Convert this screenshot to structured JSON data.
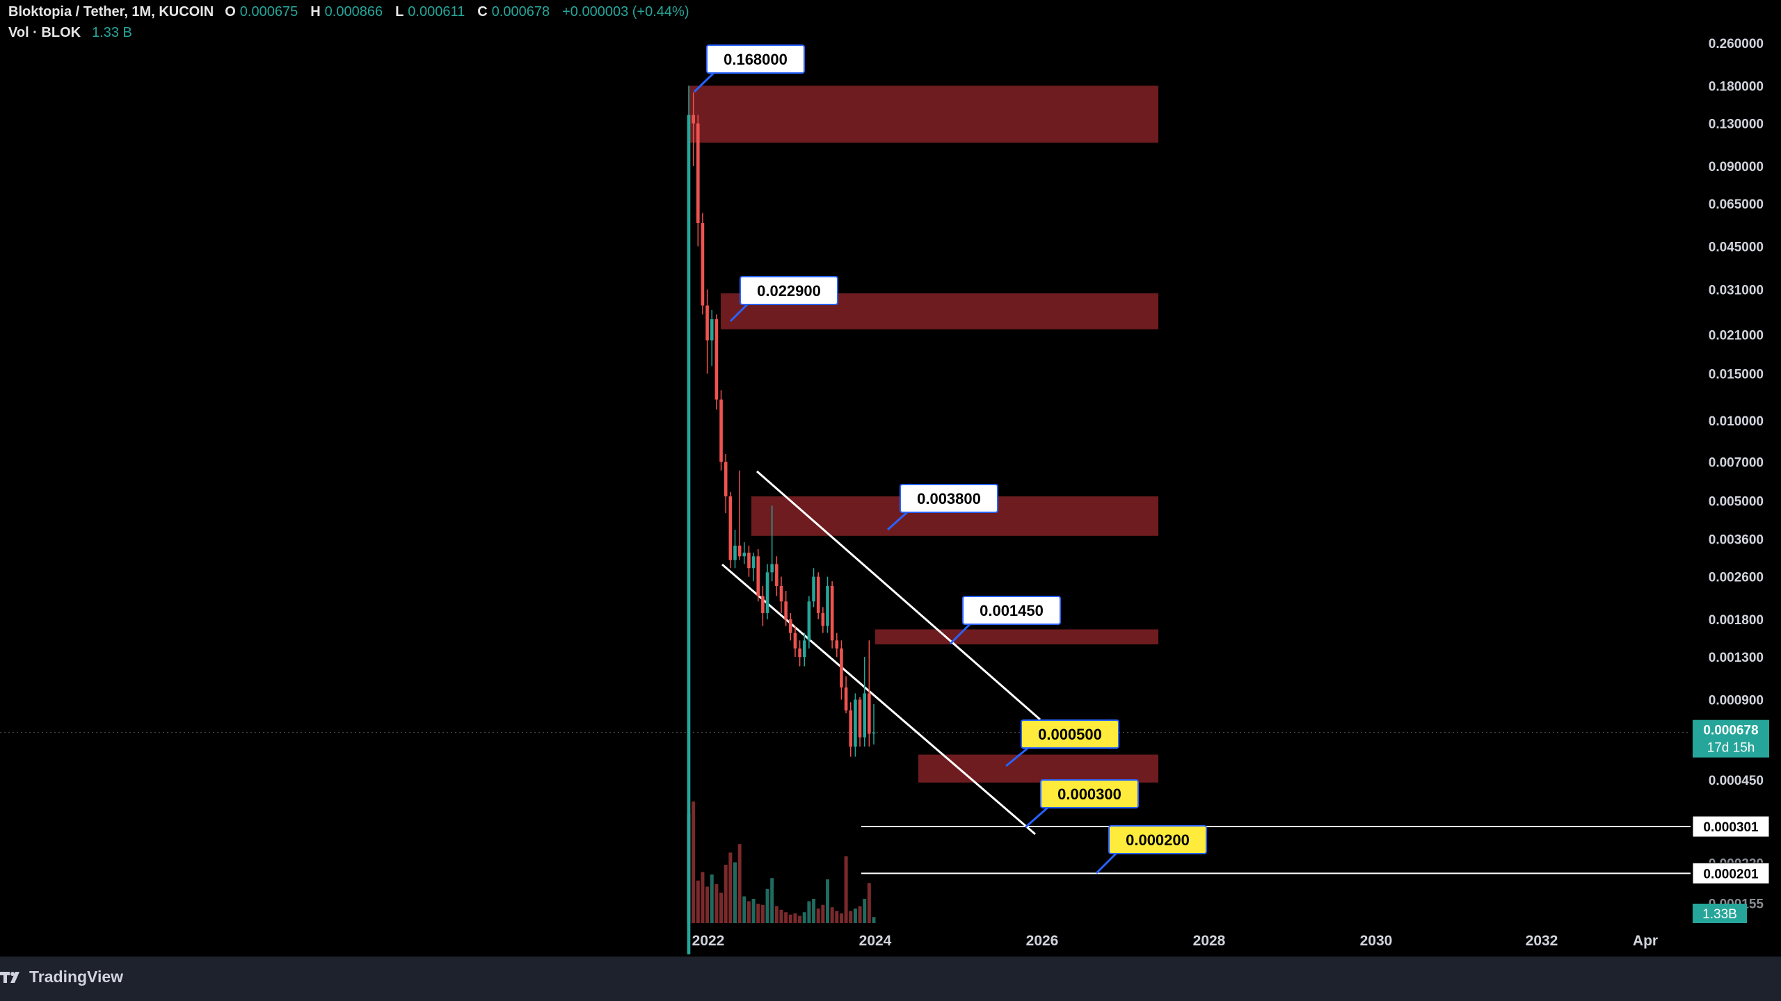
{
  "header": {
    "symbol": "Bloktopia / Tether, 1M, KUCOIN",
    "o_key": "O",
    "o_val": "0.000675",
    "h_key": "H",
    "h_val": "0.000866",
    "l_key": "L",
    "l_val": "0.000611",
    "c_key": "C",
    "c_val": "0.000678",
    "change": "+0.000003 (+0.44%)",
    "vol_label": "Vol · BLOK",
    "vol_val": "1.33 B"
  },
  "footer": {
    "brand": "TradingView"
  },
  "colors": {
    "background": "#000000",
    "up": "#26a69a",
    "down": "#ef5350",
    "zone": "#6e1c1f",
    "callout_white": "#ffffff",
    "callout_yellow": "#ffeb3b",
    "callout_border": "#2962ff",
    "price_tag": "#26a69a"
  },
  "chart_data": {
    "type": "candlestick",
    "scale": "log",
    "ylim": [
      0.00015,
      0.38
    ],
    "y_ticks": [
      "0.260000",
      "0.180000",
      "0.130000",
      "0.090000",
      "0.065000",
      "0.045000",
      "0.031000",
      "0.021000",
      "0.015000",
      "0.010000",
      "0.007000",
      "0.005000",
      "0.003600",
      "0.002600",
      "0.001800",
      "0.001300",
      "0.000900",
      "0.000450"
    ],
    "x_ticks": [
      "2022",
      "2024",
      "2026",
      "2028",
      "2030",
      "2032",
      "Apr"
    ],
    "last_price": {
      "label": "0.000678",
      "countdown": "17d 15h"
    },
    "vol_tag": "1.33B",
    "horizontal_lines": [
      {
        "value": 0.000301,
        "label": "0.000301"
      },
      {
        "value": 0.000201,
        "label": "0.000201"
      }
    ],
    "faded_ticks": [
      "0.000220",
      "0.000155"
    ],
    "zones": [
      {
        "top": 0.18,
        "bottom": 0.11
      },
      {
        "top": 0.03,
        "bottom": 0.022
      },
      {
        "top": 0.0052,
        "bottom": 0.0037
      },
      {
        "top": 0.00165,
        "bottom": 0.00145
      },
      {
        "top": 0.00056,
        "bottom": 0.00044
      }
    ],
    "callouts": [
      {
        "label": "0.168000",
        "value": 0.168,
        "style": "white"
      },
      {
        "label": "0.022900",
        "value": 0.0229,
        "style": "white"
      },
      {
        "label": "0.003800",
        "value": 0.0038,
        "style": "white"
      },
      {
        "label": "0.001450",
        "value": 0.00145,
        "style": "white"
      },
      {
        "label": "0.000500",
        "value": 0.0005,
        "style": "yellow"
      },
      {
        "label": "0.000300",
        "value": 0.0003,
        "style": "yellow"
      },
      {
        "label": "0.000200",
        "value": 0.0002,
        "style": "yellow"
      }
    ],
    "candles": [
      {
        "o": 0.0001,
        "h": 0.18,
        "l": 0.0001,
        "c": 0.14,
        "v": 0.9
      },
      {
        "o": 0.14,
        "h": 0.17,
        "l": 0.09,
        "c": 0.13,
        "v": 1.0
      },
      {
        "o": 0.13,
        "h": 0.14,
        "l": 0.045,
        "c": 0.055,
        "v": 0.35
      },
      {
        "o": 0.055,
        "h": 0.06,
        "l": 0.025,
        "c": 0.027,
        "v": 0.42
      },
      {
        "o": 0.027,
        "h": 0.031,
        "l": 0.015,
        "c": 0.02,
        "v": 0.3
      },
      {
        "o": 0.02,
        "h": 0.026,
        "l": 0.016,
        "c": 0.024,
        "v": 0.4
      },
      {
        "o": 0.024,
        "h": 0.025,
        "l": 0.011,
        "c": 0.012,
        "v": 0.32
      },
      {
        "o": 0.012,
        "h": 0.013,
        "l": 0.0065,
        "c": 0.007,
        "v": 0.25
      },
      {
        "o": 0.007,
        "h": 0.0075,
        "l": 0.0045,
        "c": 0.0052,
        "v": 0.48
      },
      {
        "o": 0.0052,
        "h": 0.0054,
        "l": 0.0028,
        "c": 0.003,
        "v": 0.58
      },
      {
        "o": 0.003,
        "h": 0.0039,
        "l": 0.0028,
        "c": 0.0034,
        "v": 0.5
      },
      {
        "o": 0.0034,
        "h": 0.0065,
        "l": 0.003,
        "c": 0.0031,
        "v": 0.65
      },
      {
        "o": 0.0031,
        "h": 0.0035,
        "l": 0.0029,
        "c": 0.0032,
        "v": 0.22
      },
      {
        "o": 0.0032,
        "h": 0.0034,
        "l": 0.0026,
        "c": 0.0028,
        "v": 0.18
      },
      {
        "o": 0.0028,
        "h": 0.0032,
        "l": 0.0025,
        "c": 0.0031,
        "v": 0.2
      },
      {
        "o": 0.0031,
        "h": 0.0033,
        "l": 0.0021,
        "c": 0.0022,
        "v": 0.16
      },
      {
        "o": 0.0022,
        "h": 0.0024,
        "l": 0.0017,
        "c": 0.0019,
        "v": 0.15
      },
      {
        "o": 0.0019,
        "h": 0.0029,
        "l": 0.0018,
        "c": 0.0027,
        "v": 0.28
      },
      {
        "o": 0.0027,
        "h": 0.0048,
        "l": 0.0025,
        "c": 0.0029,
        "v": 0.37
      },
      {
        "o": 0.0029,
        "h": 0.0031,
        "l": 0.0022,
        "c": 0.0024,
        "v": 0.14
      },
      {
        "o": 0.0024,
        "h": 0.0026,
        "l": 0.0019,
        "c": 0.0021,
        "v": 0.11
      },
      {
        "o": 0.0021,
        "h": 0.0023,
        "l": 0.0017,
        "c": 0.0018,
        "v": 0.09
      },
      {
        "o": 0.0018,
        "h": 0.0019,
        "l": 0.0015,
        "c": 0.0016,
        "v": 0.07
      },
      {
        "o": 0.0016,
        "h": 0.0017,
        "l": 0.0013,
        "c": 0.0014,
        "v": 0.08
      },
      {
        "o": 0.0014,
        "h": 0.0015,
        "l": 0.0012,
        "c": 0.0013,
        "v": 0.06
      },
      {
        "o": 0.0013,
        "h": 0.0016,
        "l": 0.0012,
        "c": 0.0015,
        "v": 0.09
      },
      {
        "o": 0.0015,
        "h": 0.0022,
        "l": 0.0014,
        "c": 0.0021,
        "v": 0.18
      },
      {
        "o": 0.0021,
        "h": 0.0028,
        "l": 0.002,
        "c": 0.0026,
        "v": 0.2
      },
      {
        "o": 0.0026,
        "h": 0.0027,
        "l": 0.0018,
        "c": 0.0019,
        "v": 0.12
      },
      {
        "o": 0.0019,
        "h": 0.002,
        "l": 0.0016,
        "c": 0.0017,
        "v": 0.15
      },
      {
        "o": 0.0017,
        "h": 0.0026,
        "l": 0.0016,
        "c": 0.0024,
        "v": 0.36
      },
      {
        "o": 0.0024,
        "h": 0.0025,
        "l": 0.0014,
        "c": 0.0015,
        "v": 0.13
      },
      {
        "o": 0.0015,
        "h": 0.0016,
        "l": 0.0013,
        "c": 0.0014,
        "v": 0.1
      },
      {
        "o": 0.0014,
        "h": 0.0015,
        "l": 0.0009,
        "c": 0.001,
        "v": 0.08
      },
      {
        "o": 0.001,
        "h": 0.0011,
        "l": 0.0008,
        "c": 0.00082,
        "v": 0.55
      },
      {
        "o": 0.00082,
        "h": 0.00088,
        "l": 0.00055,
        "c": 0.0006,
        "v": 0.1
      },
      {
        "o": 0.0006,
        "h": 0.00095,
        "l": 0.00055,
        "c": 0.0009,
        "v": 0.12
      },
      {
        "o": 0.0009,
        "h": 0.00092,
        "l": 0.0006,
        "c": 0.00065,
        "v": 0.14
      },
      {
        "o": 0.00065,
        "h": 0.0013,
        "l": 0.0006,
        "c": 0.00095,
        "v": 0.2
      },
      {
        "o": 0.00095,
        "h": 0.0015,
        "l": 0.0006,
        "c": 0.00067,
        "v": 0.33
      },
      {
        "o": 0.000675,
        "h": 0.000866,
        "l": 0.000611,
        "c": 0.000678,
        "v": 0.05
      }
    ]
  }
}
